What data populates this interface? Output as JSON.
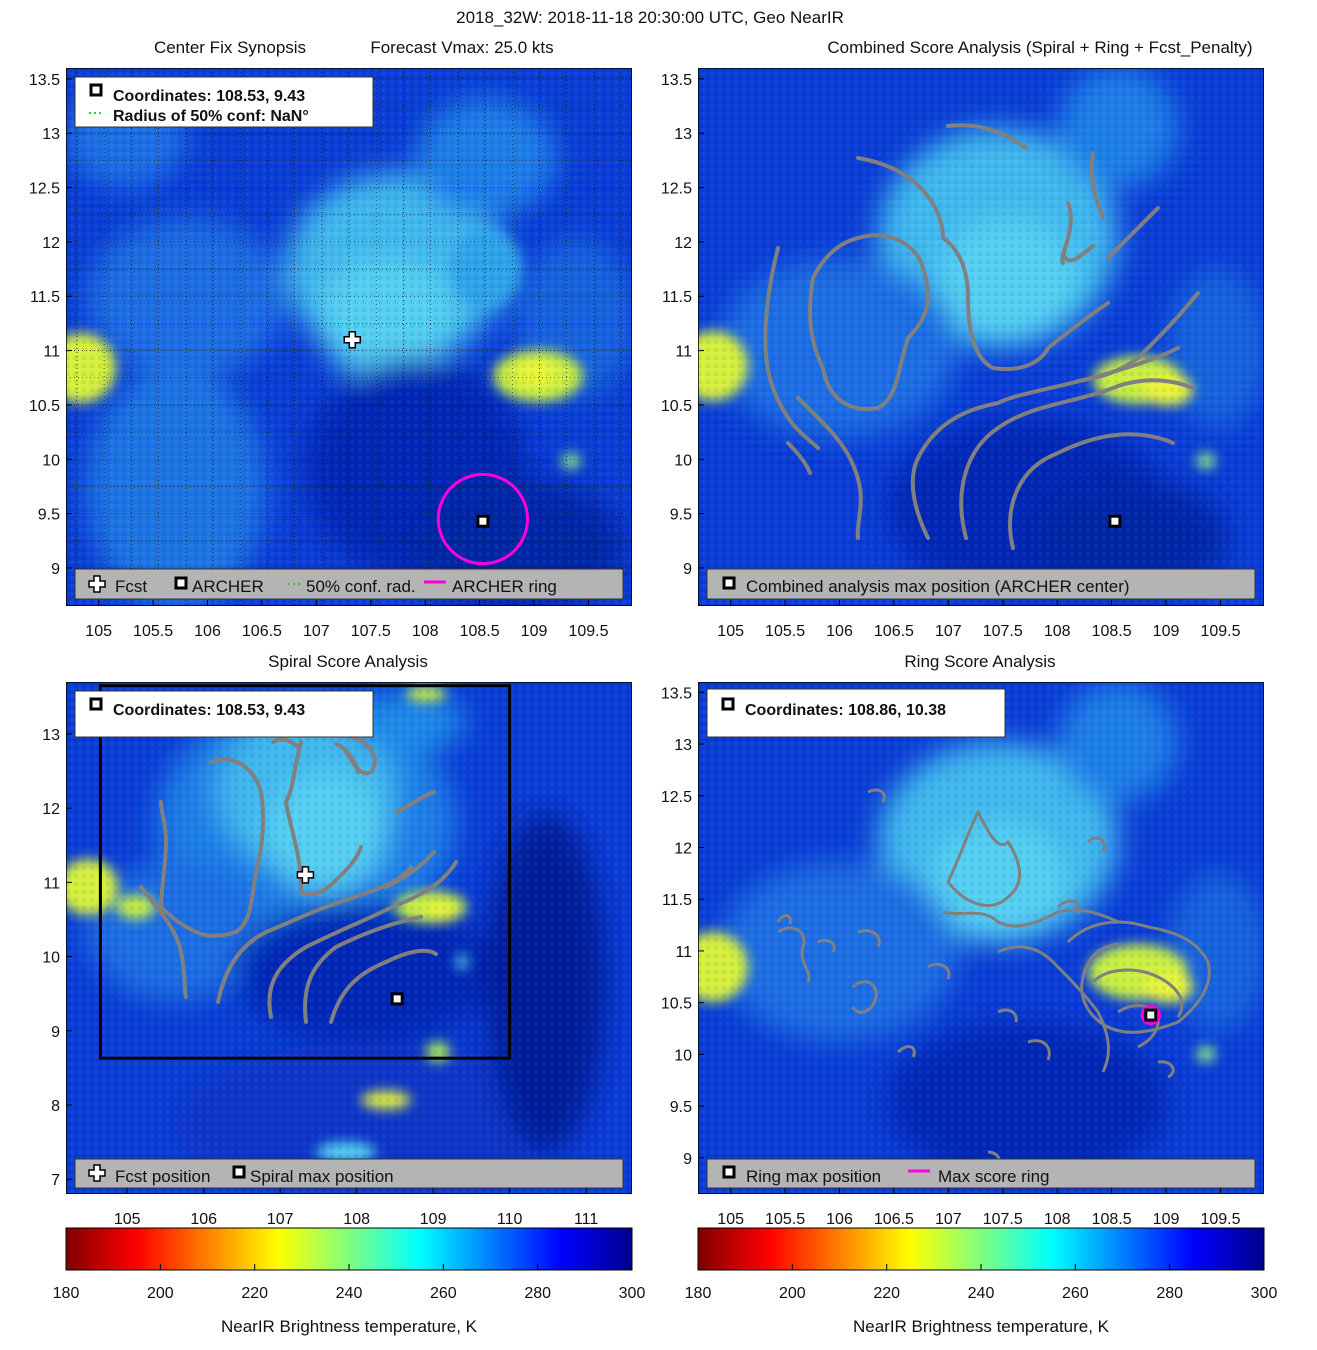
{
  "figure": {
    "suptitle": "2018_32W: 2018-11-18 20:30:00 UTC, Geo NearIR",
    "colors": {
      "track": "#808080",
      "ring": "#ff00dd",
      "legend_bg": "#b4b4b4"
    }
  },
  "panels": [
    {
      "id": "center-fix",
      "title": "Center Fix Synopsis",
      "subtitle": "Forecast Vmax: 25.0 kts",
      "xlim": [
        104.7,
        109.9
      ],
      "ylim": [
        8.65,
        13.6
      ],
      "xticks": [
        105,
        105.5,
        106,
        106.5,
        107,
        107.5,
        108,
        108.5,
        109,
        109.5
      ],
      "yticks": [
        9,
        9.5,
        10,
        10.5,
        11,
        11.5,
        12,
        12.5,
        13,
        13.5
      ],
      "grid": true,
      "info": [
        "Coordinates: 108.53, 9.43",
        "Radius of 50% conf: NaN°"
      ],
      "legend": [
        "Fcst",
        "ARCHER",
        "50% conf. rad.",
        "ARCHER ring"
      ],
      "markers": {
        "forecast": [
          107.33,
          11.1
        ],
        "center": [
          108.53,
          9.43
        ]
      },
      "ring": {
        "center": [
          108.53,
          9.45
        ],
        "radius_deg": 0.41
      }
    },
    {
      "id": "combined",
      "title": "Combined Score Analysis (Spiral + Ring + Fcst_Penalty)",
      "xlim": [
        104.7,
        109.9
      ],
      "ylim": [
        8.65,
        13.6
      ],
      "xticks": [
        105,
        105.5,
        106,
        106.5,
        107,
        107.5,
        108,
        108.5,
        109,
        109.5
      ],
      "yticks": [
        9,
        9.5,
        10,
        10.5,
        11,
        11.5,
        12,
        12.5,
        13,
        13.5
      ],
      "grid": false,
      "legend": [
        "Combined analysis max position (ARCHER center)"
      ],
      "markers": {
        "center": [
          108.53,
          9.43
        ]
      }
    },
    {
      "id": "spiral",
      "title": "Spiral Score Analysis",
      "xlim": [
        104.2,
        111.6
      ],
      "ylim": [
        6.8,
        13.7
      ],
      "xticks": [
        105,
        106,
        107,
        108,
        109,
        110,
        111
      ],
      "yticks": [
        7,
        8,
        9,
        10,
        11,
        12,
        13
      ],
      "grid": false,
      "info": [
        "Coordinates: 108.53, 9.43"
      ],
      "legend": [
        "Fcst position",
        "Spiral max position"
      ],
      "markers": {
        "forecast": [
          107.33,
          11.1
        ],
        "center": [
          108.53,
          9.43
        ]
      },
      "box": {
        "x": [
          104.65,
          110.0
        ],
        "y": [
          8.63,
          13.65
        ]
      }
    },
    {
      "id": "ring",
      "title": "Ring Score Analysis",
      "xlim": [
        104.7,
        109.9
      ],
      "ylim": [
        8.65,
        13.6
      ],
      "xticks": [
        105,
        105.5,
        106,
        106.5,
        107,
        107.5,
        108,
        108.5,
        109,
        109.5
      ],
      "yticks": [
        9,
        9.5,
        10,
        10.5,
        11,
        11.5,
        12,
        12.5,
        13,
        13.5
      ],
      "grid": false,
      "info": [
        "Coordinates: 108.86, 10.38"
      ],
      "legend": [
        "Ring max position",
        "Max score ring"
      ],
      "markers": {
        "center": [
          108.86,
          10.38
        ]
      },
      "ring": {
        "center": [
          108.86,
          10.38
        ],
        "radius_deg": 0.08
      }
    }
  ],
  "colorbars": [
    {
      "id": "left",
      "label": "NearIR Brightness temperature, K",
      "min": 180,
      "max": 300,
      "ticks": [
        180,
        200,
        220,
        240,
        260,
        280,
        300
      ]
    },
    {
      "id": "right",
      "label": "NearIR Brightness temperature, K",
      "min": 180,
      "max": 300,
      "ticks": [
        180,
        200,
        220,
        240,
        260,
        280,
        300
      ]
    }
  ],
  "chart_data": [
    {
      "type": "heatmap",
      "title": "Center Fix Synopsis",
      "subtitle": "Forecast Vmax: 25.0 kts",
      "x_range": [
        104.7,
        109.9
      ],
      "y_range": [
        8.65,
        13.6
      ],
      "value_range_K": [
        180,
        300
      ],
      "markers": [
        {
          "name": "Fcst",
          "x": 107.33,
          "y": 11.1
        },
        {
          "name": "ARCHER",
          "x": 108.53,
          "y": 9.43
        }
      ]
    },
    {
      "type": "heatmap",
      "title": "Combined Score Analysis (Spiral + Ring + Fcst_Penalty)",
      "x_range": [
        104.7,
        109.9
      ],
      "y_range": [
        8.65,
        13.6
      ],
      "markers": [
        {
          "name": "Combined analysis max position (ARCHER center)",
          "x": 108.53,
          "y": 9.43
        }
      ]
    },
    {
      "type": "heatmap",
      "title": "Spiral Score Analysis",
      "x_range": [
        104.2,
        111.6
      ],
      "y_range": [
        6.8,
        13.7
      ],
      "markers": [
        {
          "name": "Fcst position",
          "x": 107.33,
          "y": 11.1
        },
        {
          "name": "Spiral max position",
          "x": 108.53,
          "y": 9.43
        }
      ]
    },
    {
      "type": "heatmap",
      "title": "Ring Score Analysis",
      "x_range": [
        104.7,
        109.9
      ],
      "y_range": [
        8.65,
        13.6
      ],
      "markers": [
        {
          "name": "Ring max position",
          "x": 108.86,
          "y": 10.38
        }
      ]
    }
  ]
}
